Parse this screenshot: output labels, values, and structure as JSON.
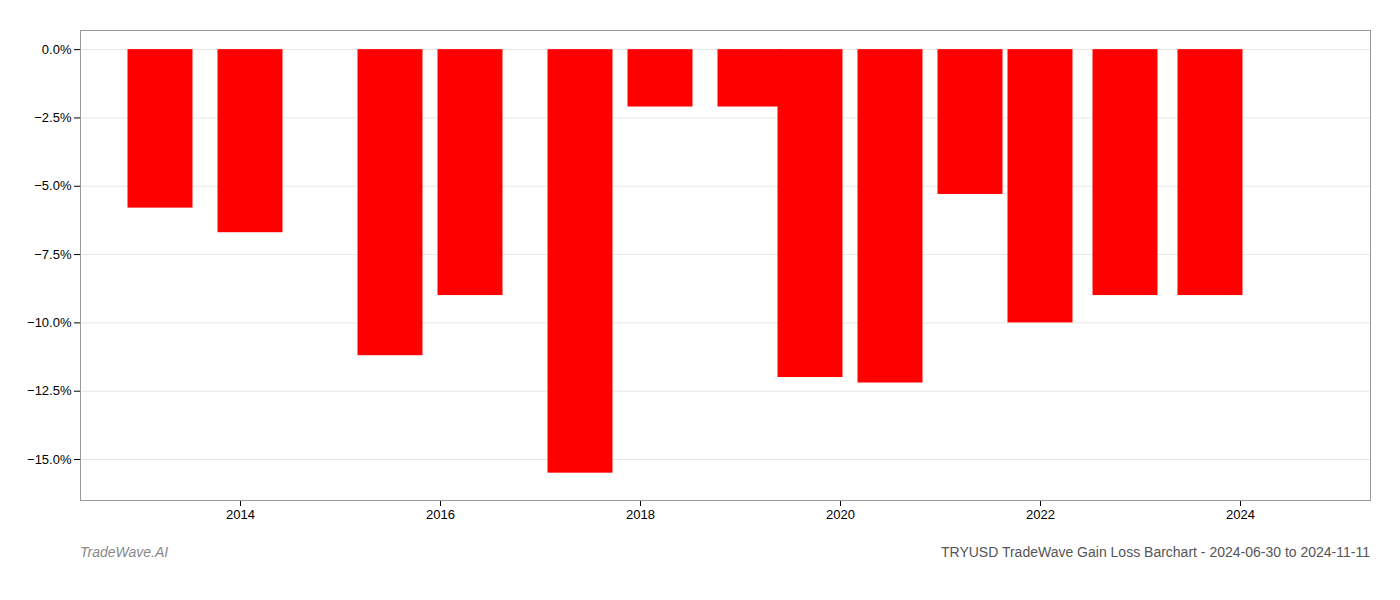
{
  "chart_data": {
    "type": "bar",
    "title": "TRYUSD TradeWave Gain Loss Barchart - 2024-06-30 to 2024-11-11",
    "annotations": [
      {
        "text": "TradeWave.AI"
      }
    ],
    "x": [
      2013.2,
      2014.1,
      2015.5,
      2016.3,
      2017.4,
      2018.2,
      2019.1,
      2019.7,
      2020.5,
      2021.3,
      2022.0,
      2022.85,
      2023.7
    ],
    "values": [
      -5.8,
      -6.7,
      -11.2,
      -9.0,
      -15.5,
      -2.1,
      -2.1,
      -12.0,
      -12.2,
      -5.3,
      -10.0,
      -9.0,
      -9.0
    ],
    "color": "#FF0000",
    "xlim": [
      2012.4,
      2025.3
    ],
    "xticks": [
      2014,
      2016,
      2018,
      2020,
      2022,
      2024
    ],
    "ylim": [
      -16.5,
      0.7
    ],
    "yticks": [
      {
        "value": 0.0,
        "label": "0.0%"
      },
      {
        "value": -2.5,
        "label": "−2.5%"
      },
      {
        "value": -5.0,
        "label": "−5.0%"
      },
      {
        "value": -7.5,
        "label": "−7.5%"
      },
      {
        "value": -10.0,
        "label": "−10.0%"
      },
      {
        "value": -12.5,
        "label": "−12.5%"
      },
      {
        "value": -15.0,
        "label": "−15.0%"
      }
    ],
    "grid": true
  }
}
